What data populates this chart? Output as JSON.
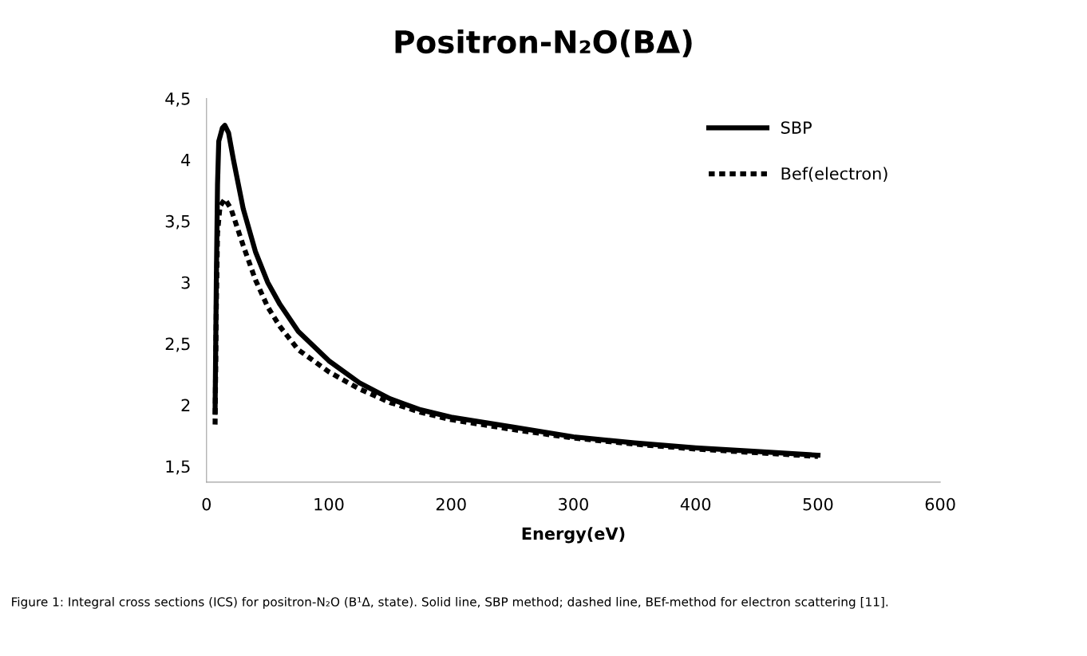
{
  "chart_data": {
    "type": "line",
    "title": "Positron-N₂O(BΔ)",
    "xlabel": "Energy(eV)",
    "xlim": [
      0,
      600
    ],
    "xticks": [
      0,
      100,
      200,
      300,
      400,
      500,
      600
    ],
    "ylim": [
      1.37,
      4.5
    ],
    "yticks": [
      {
        "value": 1.5,
        "label": "1,5"
      },
      {
        "value": 2,
        "label": "2"
      },
      {
        "value": 2.5,
        "label": "2,5"
      },
      {
        "value": 3,
        "label": "3"
      },
      {
        "value": 3.5,
        "label": "3,5"
      },
      {
        "value": 4,
        "label": "4"
      },
      {
        "value": 4.5,
        "label": "4,5"
      }
    ],
    "grid": false,
    "legend": "top right",
    "marker": "none",
    "series": [
      {
        "name": "SBP",
        "color": "#000000",
        "line_style": "solid",
        "x": [
          7,
          8,
          9,
          10,
          13,
          15,
          18,
          22,
          30,
          40,
          50,
          60,
          75,
          100,
          125,
          150,
          175,
          200,
          250,
          300,
          350,
          400,
          450,
          500
        ],
        "values": [
          1.94,
          3.0,
          3.8,
          4.15,
          4.26,
          4.28,
          4.22,
          4.0,
          3.6,
          3.25,
          3.0,
          2.82,
          2.6,
          2.36,
          2.18,
          2.05,
          1.96,
          1.9,
          1.82,
          1.74,
          1.69,
          1.65,
          1.62,
          1.59
        ]
      },
      {
        "name": "Bef(electron)",
        "color": "#000000",
        "line_style": "dotted",
        "x": [
          7,
          8,
          9,
          11,
          15,
          20,
          30,
          40,
          50,
          60,
          75,
          100,
          125,
          150,
          175,
          200,
          250,
          300,
          350,
          400,
          450,
          500
        ],
        "values": [
          1.84,
          2.8,
          3.4,
          3.62,
          3.68,
          3.6,
          3.3,
          3.02,
          2.8,
          2.64,
          2.45,
          2.27,
          2.13,
          2.02,
          1.94,
          1.88,
          1.8,
          1.73,
          1.68,
          1.64,
          1.61,
          1.58
        ]
      }
    ],
    "annotations": [
      "Figure 1: Integral cross sections (ICS) for positron-N₂O (B¹Δ, state). Solid line, SBP method; dashed line, BEf-method for electron scattering [11]."
    ]
  }
}
